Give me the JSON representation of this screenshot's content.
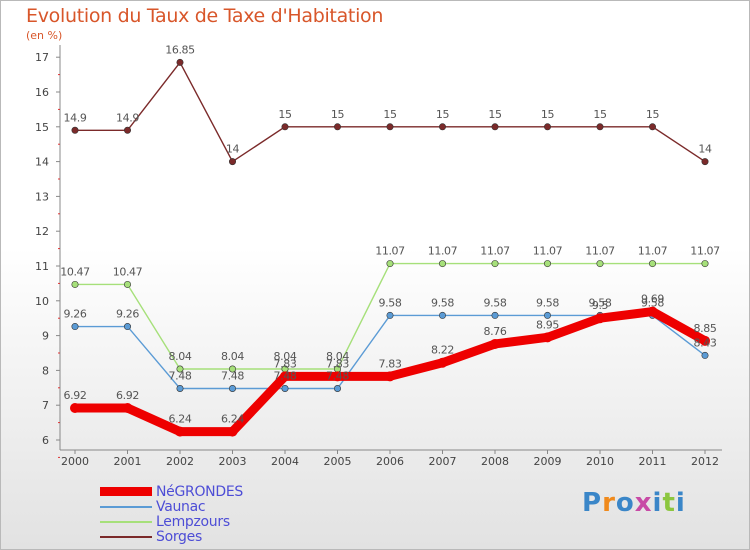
{
  "header": {
    "title": "Evolution du Taux de Taxe d'Habitation",
    "subtitle": "(en %)"
  },
  "chart_data": {
    "type": "line",
    "title": "Evolution du Taux de Taxe d'Habitation",
    "ylabel": "(en %)",
    "xlabel": "",
    "ylim": [
      6,
      17
    ],
    "yticks": [
      6,
      7,
      8,
      9,
      10,
      11,
      12,
      13,
      14,
      15,
      16,
      17
    ],
    "categories": [
      "2000",
      "2001",
      "2002",
      "2003",
      "2004",
      "2005",
      "2006",
      "2007",
      "2008",
      "2009",
      "2010",
      "2011",
      "2012"
    ],
    "grid": false,
    "legend_position": "bottom-left",
    "series": [
      {
        "name": "NéGRONDES",
        "color": "#ee0000",
        "values": [
          6.92,
          6.92,
          6.24,
          6.24,
          7.83,
          7.83,
          7.83,
          8.22,
          8.76,
          8.95,
          9.5,
          9.69,
          8.85
        ],
        "labels": [
          "6.92",
          "6.92",
          "6.24",
          "6.24",
          "7.83",
          "7.83",
          "7.83",
          "8.22",
          "8.76",
          "8.95",
          "9.5",
          "9.69",
          "8.85"
        ]
      },
      {
        "name": "Vaunac",
        "color": "#5b9bd5",
        "values": [
          9.26,
          9.26,
          7.48,
          7.48,
          7.48,
          7.48,
          9.58,
          9.58,
          9.58,
          9.58,
          9.58,
          9.58,
          8.43
        ],
        "labels": [
          "9.26",
          "9.26",
          "7.48",
          "7.48",
          "7.48",
          "7.48",
          "9.58",
          "9.58",
          "9.58",
          "9.58",
          "9.58",
          "9.58",
          "8.43"
        ]
      },
      {
        "name": "Lempzours",
        "color": "#a6e07a",
        "values": [
          10.47,
          10.47,
          8.04,
          8.04,
          8.04,
          8.04,
          11.07,
          11.07,
          11.07,
          11.07,
          11.07,
          11.07,
          11.07
        ],
        "labels": [
          "10.47",
          "10.47",
          "8.04",
          "8.04",
          "8.04",
          "8.04",
          "11.07",
          "11.07",
          "11.07",
          "11.07",
          "11.07",
          "11.07",
          "11.07"
        ]
      },
      {
        "name": "Sorges",
        "color": "#7b2a2a",
        "values": [
          14.9,
          14.9,
          16.85,
          14,
          15,
          15,
          15,
          15,
          15,
          15,
          15,
          15,
          14
        ],
        "labels": [
          "14.9",
          "14.9",
          "16.85",
          "14",
          "15",
          "15",
          "15",
          "15",
          "15",
          "15",
          "15",
          "15",
          "14"
        ]
      }
    ]
  },
  "logo": {
    "text": "Proxiti"
  }
}
